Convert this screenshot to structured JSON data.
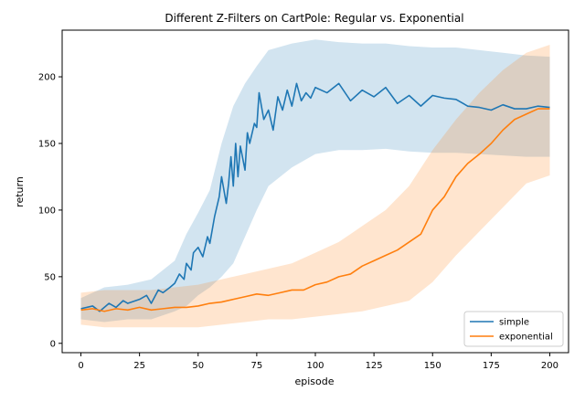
{
  "chart_data": {
    "type": "line",
    "title": "Different Z-Filters on CartPole: Regular vs. Exponential",
    "xlabel": "episode",
    "ylabel": "return",
    "xlim": [
      -8,
      208
    ],
    "ylim": [
      -7,
      235
    ],
    "xticks": [
      0,
      25,
      50,
      75,
      100,
      125,
      150,
      175,
      200
    ],
    "yticks": [
      0,
      50,
      100,
      150,
      200
    ],
    "legend_position": "lower-right",
    "grid": false,
    "series": [
      {
        "name": "simple",
        "color": "#1f77b4",
        "band_color": "#1f77b4",
        "band_opacity": 0.2,
        "points": [
          [
            0,
            26
          ],
          [
            5,
            28
          ],
          [
            8,
            24
          ],
          [
            12,
            30
          ],
          [
            15,
            27
          ],
          [
            18,
            32
          ],
          [
            20,
            30
          ],
          [
            25,
            33
          ],
          [
            28,
            36
          ],
          [
            30,
            30
          ],
          [
            33,
            40
          ],
          [
            35,
            38
          ],
          [
            38,
            42
          ],
          [
            40,
            45
          ],
          [
            42,
            52
          ],
          [
            44,
            48
          ],
          [
            45,
            60
          ],
          [
            47,
            55
          ],
          [
            48,
            68
          ],
          [
            50,
            72
          ],
          [
            52,
            65
          ],
          [
            54,
            80
          ],
          [
            55,
            75
          ],
          [
            57,
            95
          ],
          [
            59,
            110
          ],
          [
            60,
            125
          ],
          [
            62,
            105
          ],
          [
            63,
            120
          ],
          [
            64,
            140
          ],
          [
            65,
            118
          ],
          [
            66,
            150
          ],
          [
            67,
            125
          ],
          [
            68,
            148
          ],
          [
            70,
            130
          ],
          [
            71,
            158
          ],
          [
            72,
            150
          ],
          [
            74,
            165
          ],
          [
            75,
            162
          ],
          [
            76,
            188
          ],
          [
            78,
            168
          ],
          [
            80,
            175
          ],
          [
            82,
            160
          ],
          [
            84,
            185
          ],
          [
            86,
            175
          ],
          [
            88,
            190
          ],
          [
            90,
            178
          ],
          [
            92,
            195
          ],
          [
            94,
            182
          ],
          [
            96,
            188
          ],
          [
            98,
            184
          ],
          [
            100,
            192
          ],
          [
            105,
            188
          ],
          [
            110,
            195
          ],
          [
            115,
            182
          ],
          [
            120,
            190
          ],
          [
            125,
            185
          ],
          [
            130,
            192
          ],
          [
            135,
            180
          ],
          [
            140,
            186
          ],
          [
            145,
            178
          ],
          [
            150,
            186
          ],
          [
            155,
            184
          ],
          [
            160,
            183
          ],
          [
            165,
            178
          ],
          [
            170,
            177
          ],
          [
            175,
            175
          ],
          [
            180,
            179
          ],
          [
            185,
            176
          ],
          [
            190,
            176
          ],
          [
            195,
            178
          ],
          [
            200,
            177
          ]
        ],
        "band_upper": [
          [
            0,
            34
          ],
          [
            10,
            42
          ],
          [
            20,
            44
          ],
          [
            30,
            48
          ],
          [
            40,
            62
          ],
          [
            45,
            82
          ],
          [
            50,
            98
          ],
          [
            55,
            115
          ],
          [
            60,
            150
          ],
          [
            65,
            178
          ],
          [
            70,
            195
          ],
          [
            75,
            208
          ],
          [
            80,
            220
          ],
          [
            90,
            225
          ],
          [
            100,
            228
          ],
          [
            110,
            226
          ],
          [
            120,
            225
          ],
          [
            130,
            225
          ],
          [
            140,
            223
          ],
          [
            150,
            222
          ],
          [
            160,
            222
          ],
          [
            170,
            220
          ],
          [
            180,
            218
          ],
          [
            190,
            216
          ],
          [
            200,
            215
          ]
        ],
        "band_lower": [
          [
            0,
            18
          ],
          [
            10,
            16
          ],
          [
            20,
            18
          ],
          [
            30,
            18
          ],
          [
            40,
            24
          ],
          [
            45,
            28
          ],
          [
            50,
            36
          ],
          [
            55,
            42
          ],
          [
            60,
            50
          ],
          [
            65,
            60
          ],
          [
            70,
            80
          ],
          [
            75,
            100
          ],
          [
            80,
            118
          ],
          [
            90,
            132
          ],
          [
            100,
            142
          ],
          [
            110,
            145
          ],
          [
            120,
            145
          ],
          [
            130,
            146
          ],
          [
            140,
            144
          ],
          [
            150,
            143
          ],
          [
            160,
            143
          ],
          [
            170,
            142
          ],
          [
            180,
            141
          ],
          [
            190,
            140
          ],
          [
            200,
            140
          ]
        ]
      },
      {
        "name": "exponential",
        "color": "#ff7f0e",
        "band_color": "#ff7f0e",
        "band_opacity": 0.2,
        "points": [
          [
            0,
            25
          ],
          [
            5,
            26
          ],
          [
            10,
            24
          ],
          [
            15,
            26
          ],
          [
            20,
            25
          ],
          [
            25,
            27
          ],
          [
            30,
            25
          ],
          [
            35,
            26
          ],
          [
            40,
            27
          ],
          [
            45,
            27
          ],
          [
            50,
            28
          ],
          [
            55,
            30
          ],
          [
            60,
            31
          ],
          [
            65,
            33
          ],
          [
            70,
            35
          ],
          [
            75,
            37
          ],
          [
            80,
            36
          ],
          [
            85,
            38
          ],
          [
            90,
            40
          ],
          [
            95,
            40
          ],
          [
            100,
            44
          ],
          [
            105,
            46
          ],
          [
            110,
            50
          ],
          [
            115,
            52
          ],
          [
            120,
            58
          ],
          [
            125,
            62
          ],
          [
            130,
            66
          ],
          [
            135,
            70
          ],
          [
            140,
            76
          ],
          [
            145,
            82
          ],
          [
            150,
            100
          ],
          [
            155,
            110
          ],
          [
            160,
            125
          ],
          [
            165,
            135
          ],
          [
            170,
            142
          ],
          [
            175,
            150
          ],
          [
            180,
            160
          ],
          [
            185,
            168
          ],
          [
            190,
            172
          ],
          [
            195,
            176
          ],
          [
            200,
            176
          ]
        ],
        "band_upper": [
          [
            0,
            38
          ],
          [
            10,
            40
          ],
          [
            20,
            40
          ],
          [
            30,
            40
          ],
          [
            40,
            42
          ],
          [
            50,
            44
          ],
          [
            60,
            48
          ],
          [
            70,
            52
          ],
          [
            80,
            56
          ],
          [
            90,
            60
          ],
          [
            100,
            68
          ],
          [
            110,
            76
          ],
          [
            120,
            88
          ],
          [
            130,
            100
          ],
          [
            140,
            118
          ],
          [
            150,
            145
          ],
          [
            160,
            168
          ],
          [
            170,
            188
          ],
          [
            180,
            205
          ],
          [
            190,
            218
          ],
          [
            200,
            224
          ]
        ],
        "band_lower": [
          [
            0,
            14
          ],
          [
            10,
            12
          ],
          [
            20,
            12
          ],
          [
            30,
            12
          ],
          [
            40,
            12
          ],
          [
            50,
            12
          ],
          [
            60,
            14
          ],
          [
            70,
            16
          ],
          [
            80,
            18
          ],
          [
            90,
            18
          ],
          [
            100,
            20
          ],
          [
            110,
            22
          ],
          [
            120,
            24
          ],
          [
            130,
            28
          ],
          [
            140,
            32
          ],
          [
            150,
            46
          ],
          [
            160,
            66
          ],
          [
            170,
            84
          ],
          [
            180,
            102
          ],
          [
            190,
            120
          ],
          [
            200,
            126
          ]
        ]
      }
    ]
  }
}
